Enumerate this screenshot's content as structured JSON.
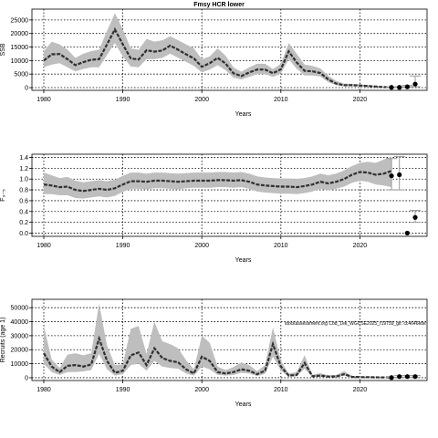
{
  "title": "Fmsy HCR lower",
  "annotation": "stockassessment.org Cod_1ek_WGCSE2025_r19759_git: cc4646e8e",
  "colors": {
    "ribbon": "#bebebe",
    "line": "#303030",
    "point": "#000000",
    "error_bar": "#999999",
    "axis": "#000000",
    "grid": "#000000"
  },
  "chart_data": [
    {
      "type": "line",
      "ylabel": "SSB",
      "xlabel": "Years",
      "xlim": [
        1978.5,
        2028.5
      ],
      "ylim": [
        -1000,
        29000
      ],
      "xticks": [
        1980,
        1990,
        2000,
        2010,
        2020
      ],
      "yticks": [
        0,
        5000,
        10000,
        15000,
        20000,
        25000
      ],
      "ytick_labels": [
        "0",
        "5000",
        "10000",
        "15000",
        "20000",
        "25000"
      ],
      "grid": true,
      "x": [
        1980,
        1981,
        1982,
        1983,
        1984,
        1985,
        1986,
        1987,
        1988,
        1989,
        1990,
        1991,
        1992,
        1993,
        1994,
        1995,
        1996,
        1997,
        1998,
        1999,
        2000,
        2001,
        2002,
        2003,
        2004,
        2005,
        2006,
        2007,
        2008,
        2009,
        2010,
        2011,
        2012,
        2013,
        2014,
        2015,
        2016,
        2017,
        2018,
        2019,
        2020,
        2021,
        2022,
        2023,
        2024
      ],
      "estimate": [
        10000,
        12300,
        12400,
        10500,
        8300,
        9400,
        10300,
        10500,
        16000,
        21500,
        16000,
        10800,
        10400,
        13800,
        13300,
        13700,
        15500,
        14000,
        12300,
        10800,
        7700,
        9000,
        11000,
        8900,
        5300,
        4300,
        5600,
        6700,
        6700,
        5300,
        6800,
        13400,
        9300,
        6200,
        6000,
        5400,
        3000,
        1500,
        900,
        900,
        800,
        600,
        400,
        200,
        100
      ],
      "lower": [
        7500,
        8500,
        9000,
        7500,
        6000,
        6900,
        7500,
        7500,
        12000,
        16500,
        11500,
        7800,
        7500,
        10500,
        10500,
        11000,
        12500,
        11000,
        9500,
        8000,
        5600,
        6700,
        8300,
        6400,
        3700,
        3000,
        4000,
        5000,
        5000,
        4000,
        5200,
        10500,
        7000,
        4500,
        4500,
        4100,
        2000,
        900,
        500,
        500,
        500,
        350,
        200,
        80,
        30
      ],
      "upper": [
        13500,
        17000,
        16000,
        14000,
        11000,
        12500,
        13500,
        14000,
        21000,
        27500,
        21500,
        14500,
        14000,
        18000,
        17000,
        17500,
        19000,
        17500,
        16000,
        14500,
        10500,
        11500,
        14500,
        11800,
        7500,
        5800,
        7500,
        8800,
        8800,
        6900,
        8800,
        16500,
        12500,
        8500,
        8000,
        7100,
        4400,
        2500,
        1500,
        1400,
        1200,
        900,
        650,
        350,
        200
      ],
      "projection": {
        "x": [
          2024,
          2025,
          2026,
          2027
        ],
        "median": [
          100,
          100,
          300,
          1300
        ],
        "lower": [
          20,
          20,
          80,
          300
        ],
        "upper": [
          200,
          300,
          800,
          4300
        ]
      }
    },
    {
      "type": "line",
      "ylabel": "F₃₋₅",
      "xlabel": "Years",
      "xlim": [
        1978.5,
        2028.5
      ],
      "ylim": [
        -0.06,
        1.46
      ],
      "xticks": [
        1980,
        1990,
        2000,
        2010,
        2020
      ],
      "yticks": [
        0.0,
        0.2,
        0.4,
        0.6,
        0.8,
        1.0,
        1.2,
        1.4
      ],
      "ytick_labels": [
        "0.0",
        "0.2",
        "0.4",
        "0.6",
        "0.8",
        "1.0",
        "1.2",
        "1.4"
      ],
      "grid": true,
      "x": [
        1980,
        1981,
        1982,
        1983,
        1984,
        1985,
        1986,
        1987,
        1988,
        1989,
        1990,
        1991,
        1992,
        1993,
        1994,
        1995,
        1996,
        1997,
        1998,
        1999,
        2000,
        2001,
        2002,
        2003,
        2004,
        2005,
        2006,
        2007,
        2008,
        2009,
        2010,
        2011,
        2012,
        2013,
        2014,
        2015,
        2016,
        2017,
        2018,
        2019,
        2020,
        2021,
        2022,
        2023,
        2024
      ],
      "estimate": [
        0.9,
        0.88,
        0.85,
        0.86,
        0.8,
        0.78,
        0.8,
        0.82,
        0.8,
        0.83,
        0.9,
        0.96,
        0.96,
        0.95,
        0.97,
        0.97,
        0.96,
        0.95,
        0.96,
        0.97,
        0.97,
        0.97,
        0.98,
        0.98,
        0.97,
        0.98,
        0.95,
        0.9,
        0.88,
        0.87,
        0.86,
        0.86,
        0.85,
        0.87,
        0.9,
        0.95,
        0.92,
        0.95,
        1.0,
        1.08,
        1.13,
        1.12,
        1.08,
        1.1,
        1.15
      ],
      "lower": [
        0.72,
        0.72,
        0.7,
        0.7,
        0.65,
        0.64,
        0.66,
        0.68,
        0.66,
        0.69,
        0.76,
        0.82,
        0.82,
        0.81,
        0.83,
        0.83,
        0.82,
        0.81,
        0.83,
        0.84,
        0.84,
        0.84,
        0.85,
        0.85,
        0.84,
        0.85,
        0.82,
        0.77,
        0.75,
        0.74,
        0.73,
        0.73,
        0.72,
        0.74,
        0.77,
        0.82,
        0.79,
        0.82,
        0.86,
        0.93,
        0.97,
        0.95,
        0.9,
        0.88,
        0.85
      ],
      "upper": [
        1.12,
        1.07,
        1.02,
        1.04,
        0.97,
        0.94,
        0.96,
        0.98,
        0.96,
        0.99,
        1.06,
        1.12,
        1.12,
        1.1,
        1.12,
        1.12,
        1.11,
        1.1,
        1.11,
        1.12,
        1.12,
        1.12,
        1.13,
        1.13,
        1.12,
        1.13,
        1.1,
        1.05,
        1.03,
        1.02,
        1.01,
        1.01,
        1.0,
        1.02,
        1.05,
        1.1,
        1.07,
        1.1,
        1.16,
        1.24,
        1.3,
        1.32,
        1.3,
        1.36,
        1.42
      ],
      "projection": {
        "x": [
          2024,
          2025,
          2026,
          2027
        ],
        "median": [
          1.06,
          1.08,
          0.0,
          0.29
        ],
        "lower": [
          0.8,
          0.8,
          0.0,
          0.2
        ],
        "upper": [
          1.38,
          1.42,
          0.0,
          0.42
        ]
      }
    },
    {
      "type": "line",
      "ylabel": "Recruits (age 1)",
      "xlabel": "Years",
      "xlim": [
        1978.5,
        2028.5
      ],
      "ylim": [
        -2000,
        56000
      ],
      "xticks": [
        1980,
        1990,
        2000,
        2010,
        2020
      ],
      "yticks": [
        0,
        10000,
        20000,
        30000,
        40000,
        50000
      ],
      "ytick_labels": [
        "0",
        "10000",
        "20000",
        "30000",
        "40000",
        "50000"
      ],
      "grid": true,
      "x": [
        1980,
        1981,
        1982,
        1983,
        1984,
        1985,
        1986,
        1987,
        1988,
        1989,
        1990,
        1991,
        1992,
        1993,
        1994,
        1995,
        1996,
        1997,
        1998,
        1999,
        2000,
        2001,
        2002,
        2003,
        2004,
        2005,
        2006,
        2007,
        2008,
        2009,
        2010,
        2011,
        2012,
        2013,
        2014,
        2015,
        2016,
        2017,
        2018,
        2019,
        2020,
        2021,
        2022,
        2023,
        2024
      ],
      "estimate": [
        17500,
        8000,
        4000,
        8500,
        9000,
        8000,
        9500,
        28000,
        12000,
        3500,
        5000,
        16000,
        18000,
        9000,
        21000,
        14000,
        12000,
        11000,
        6000,
        3000,
        15000,
        12000,
        4000,
        3000,
        4000,
        6000,
        5000,
        2500,
        5000,
        24000,
        8000,
        1500,
        2000,
        10500,
        1000,
        1500,
        800,
        900,
        2500,
        600,
        400,
        400,
        300,
        200,
        100
      ],
      "lower": [
        10000,
        4000,
        2000,
        4000,
        4000,
        4500,
        5500,
        17000,
        6000,
        1500,
        2500,
        9000,
        10000,
        5000,
        12000,
        8000,
        7000,
        6500,
        3000,
        1500,
        8000,
        6000,
        2000,
        1600,
        2000,
        3500,
        3000,
        1200,
        2800,
        15000,
        5000,
        800,
        1000,
        6500,
        500,
        700,
        400,
        450,
        1400,
        300,
        200,
        200,
        150,
        100,
        50
      ],
      "upper": [
        37000,
        13000,
        7000,
        16500,
        17500,
        16000,
        17500,
        53000,
        23000,
        9000,
        9500,
        35000,
        37000,
        17000,
        40000,
        26000,
        24000,
        21000,
        12500,
        6000,
        30000,
        25000,
        8000,
        5500,
        7500,
        11000,
        9000,
        4800,
        9000,
        36000,
        12000,
        3000,
        4000,
        16000,
        2200,
        3200,
        1700,
        1900,
        4700,
        1300,
        1000,
        900,
        700,
        500,
        300
      ],
      "projection": {
        "x": [
          2024,
          2025,
          2026,
          2027
        ],
        "median": [
          100,
          800,
          800,
          800
        ],
        "lower": [
          20,
          200,
          200,
          200
        ],
        "upper": [
          300,
          1500,
          1500,
          1500
        ]
      }
    }
  ]
}
